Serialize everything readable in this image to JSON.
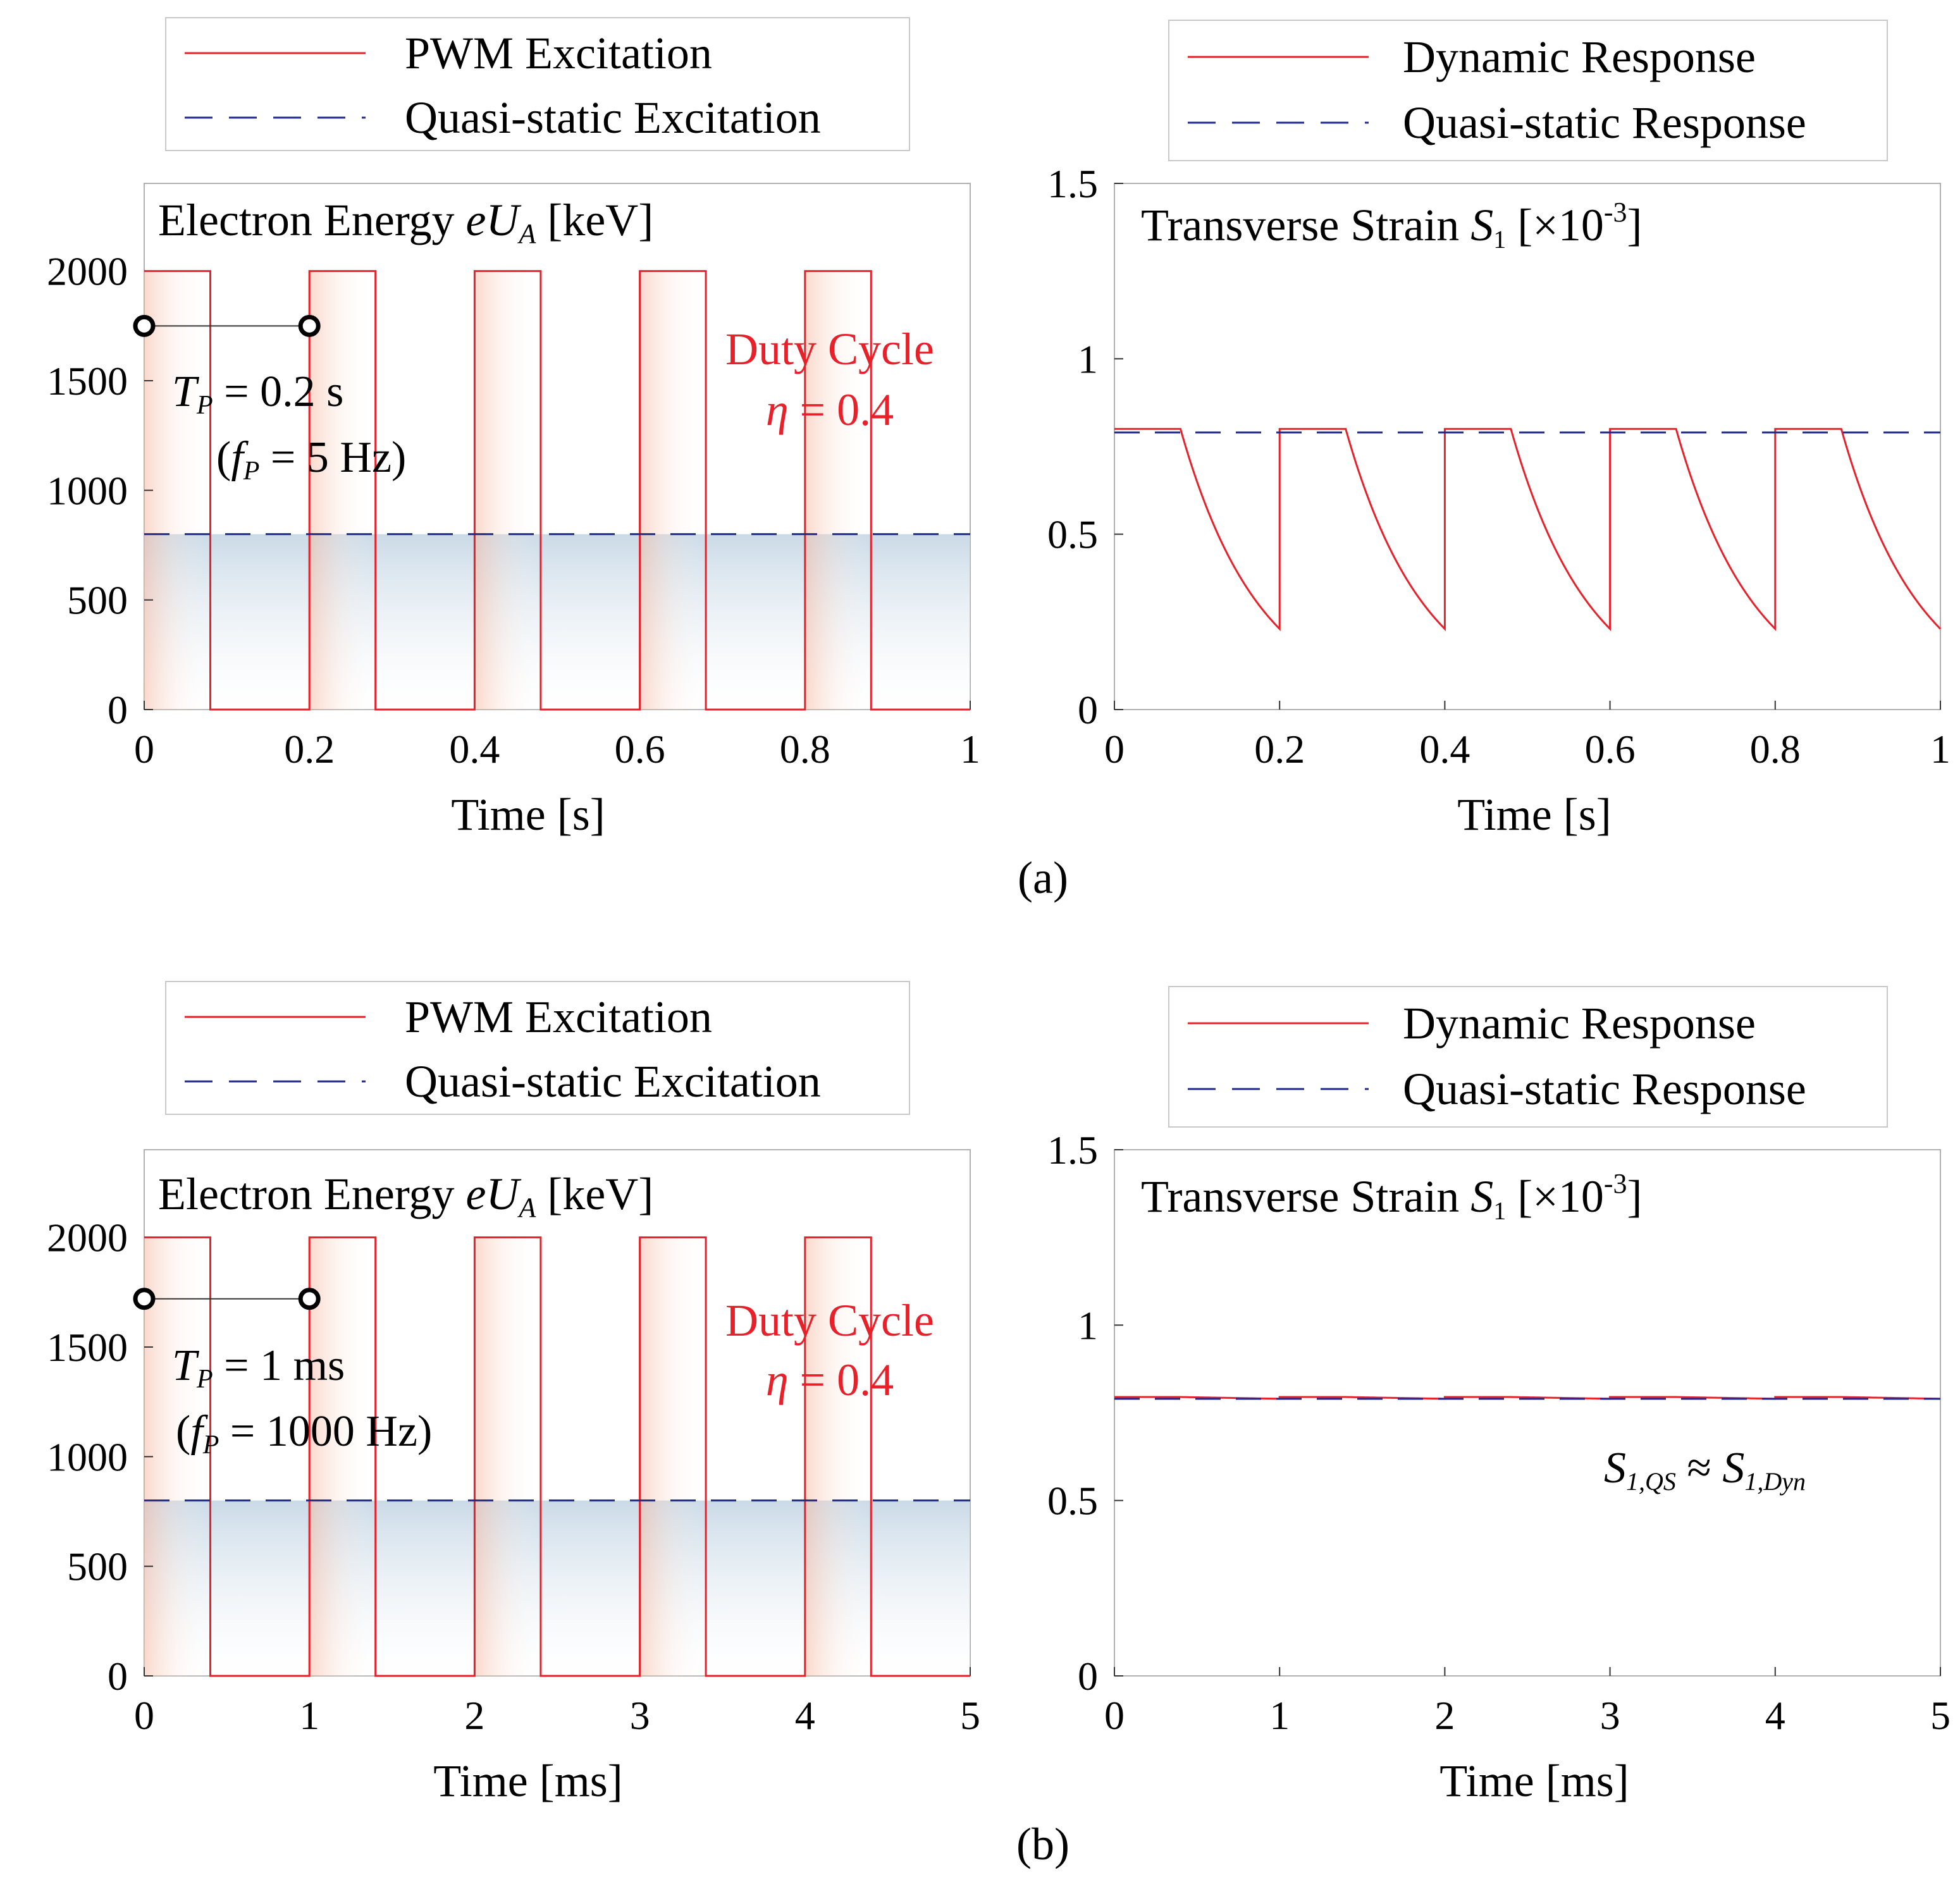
{
  "colors": {
    "pwm": "#e8202a",
    "quasi_static": "#1f2a8a",
    "frame": "#b0b0b0",
    "shade_red": "#f7c9b8",
    "shade_blue": "#b8ccdd"
  },
  "captions": [
    "(a)",
    "(b)"
  ],
  "chart_data": [
    {
      "id": "a-left",
      "type": "line",
      "title": "Electron Energy eU_A [keV]",
      "title_parts": {
        "pre": "Electron Energy ",
        "var": "eU",
        "sub": "A",
        "post": " [keV]"
      },
      "xlabel": "Time [s]",
      "ylabel": "",
      "xlim": [
        0,
        1
      ],
      "ylim": [
        0,
        2400
      ],
      "xticks": [
        0,
        0.2,
        0.4,
        0.6,
        0.8,
        1
      ],
      "xtick_labels": [
        "0",
        "0.2",
        "0.4",
        "0.6",
        "0.8",
        "1"
      ],
      "yticks": [
        0,
        500,
        1000,
        1500,
        2000
      ],
      "ytick_labels": [
        "0",
        "500",
        "1000",
        "1500",
        "2000"
      ],
      "legend": [
        "PWM Excitation",
        "Quasi-static Excitation"
      ],
      "pwm": {
        "period": 0.2,
        "duty": 0.4,
        "high": 2000,
        "low": 0,
        "t_end": 1
      },
      "quasi_static": 800,
      "period_marker": {
        "start": 0,
        "end": 0.2,
        "y": 1750
      },
      "annotation_period": {
        "var": "T",
        "sub": "P",
        "text": " = 0.2 s"
      },
      "annotation_freq": {
        "open": "(",
        "var": "f",
        "sub": "P",
        "text": " = 5 Hz)"
      },
      "duty_label": "Duty Cycle",
      "duty_value": {
        "var": "η",
        "text": " = 0.4"
      }
    },
    {
      "id": "a-right",
      "type": "line",
      "title": "Transverse Strain S_1 [×10^-3]",
      "title_parts": {
        "pre": "Transverse Strain ",
        "var": "S",
        "sub": "1",
        "post": " [×10",
        "sup": "-3",
        "end": "]"
      },
      "xlabel": "Time [s]",
      "xlim": [
        0,
        1
      ],
      "ylim": [
        0,
        1.5
      ],
      "xticks": [
        0,
        0.2,
        0.4,
        0.6,
        0.8,
        1
      ],
      "xtick_labels": [
        "0",
        "0.2",
        "0.4",
        "0.6",
        "0.8",
        "1"
      ],
      "yticks": [
        0,
        0.5,
        1,
        1.5
      ],
      "ytick_labels": [
        "0",
        "0.5",
        "1",
        "1.5"
      ],
      "legend": [
        "Dynamic Response",
        "Quasi-static Response"
      ],
      "dynamic": {
        "period": 0.2,
        "duty": 0.4,
        "high": 0.8,
        "low_end": 0.23,
        "t_end": 1
      },
      "quasi_static": 0.79
    },
    {
      "id": "b-left",
      "type": "line",
      "title": "Electron Energy eU_A [keV]",
      "title_parts": {
        "pre": "Electron Energy ",
        "var": "eU",
        "sub": "A",
        "post": " [keV]"
      },
      "xlabel": "Time [ms]",
      "xlim": [
        0,
        5
      ],
      "ylim": [
        0,
        2400
      ],
      "xticks": [
        0,
        1,
        2,
        3,
        4,
        5
      ],
      "xtick_labels": [
        "0",
        "1",
        "2",
        "3",
        "4",
        "5"
      ],
      "yticks": [
        0,
        500,
        1000,
        1500,
        2000
      ],
      "ytick_labels": [
        "0",
        "500",
        "1000",
        "1500",
        "2000"
      ],
      "legend": [
        "PWM Excitation",
        "Quasi-static Excitation"
      ],
      "pwm": {
        "period": 1,
        "duty": 0.4,
        "high": 2000,
        "low": 0,
        "t_end": 5
      },
      "quasi_static": 800,
      "period_marker": {
        "start": 0,
        "end": 1,
        "y": 1720
      },
      "annotation_period": {
        "var": "T",
        "sub": "P",
        "text": " = 1 ms"
      },
      "annotation_freq": {
        "open": "(",
        "var": "f",
        "sub": "P",
        "text": " = 1000 Hz)"
      },
      "duty_label": "Duty Cycle",
      "duty_value": {
        "var": "η",
        "text": " = 0.4"
      }
    },
    {
      "id": "b-right",
      "type": "line",
      "title": "Transverse Strain S_1 [×10^-3]",
      "title_parts": {
        "pre": "Transverse Strain ",
        "var": "S",
        "sub": "1",
        "post": " [×10",
        "sup": "-3",
        "end": "]"
      },
      "xlabel": "Time [ms]",
      "xlim": [
        0,
        5
      ],
      "ylim": [
        0,
        1.5
      ],
      "xticks": [
        0,
        1,
        2,
        3,
        4,
        5
      ],
      "xtick_labels": [
        "0",
        "1",
        "2",
        "3",
        "4",
        "5"
      ],
      "yticks": [
        0,
        0.5,
        1,
        1.5
      ],
      "ytick_labels": [
        "0",
        "0.5",
        "1",
        "1.5"
      ],
      "legend": [
        "Dynamic Response",
        "Quasi-static Response"
      ],
      "dynamic": {
        "period": 1,
        "duty": 0.4,
        "high": 0.795,
        "low_end": 0.79,
        "t_end": 5
      },
      "quasi_static": 0.79,
      "relation": {
        "lhs_var": "S",
        "lhs_sub": "1,QS",
        "op": " ≈ ",
        "rhs_var": "S",
        "rhs_sub": "1,Dyn"
      }
    }
  ]
}
